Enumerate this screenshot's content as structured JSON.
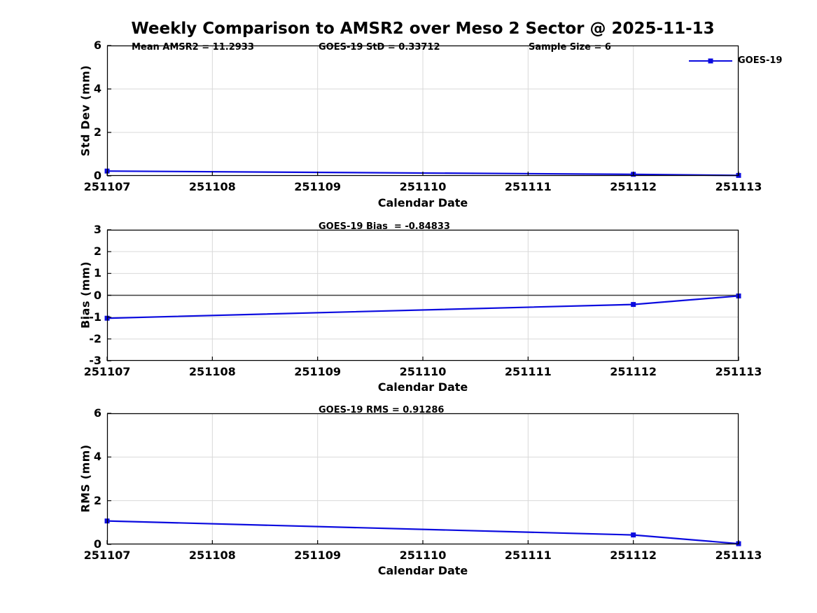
{
  "title": "Weekly Comparison to AMSR2 over Meso 2 Sector @ 2025-11-13",
  "colors": {
    "line": "#0b0bdf",
    "grid": "#d9d9d9",
    "axis": "#000000",
    "zero_line": "#3f3f3f",
    "text": "#000000"
  },
  "chart_data": [
    {
      "type": "line",
      "ylabel": "Std Dev (mm)",
      "xlabel": "Calendar Date",
      "x_ticks": [
        "251107",
        "251108",
        "251109",
        "251110",
        "251111",
        "251112",
        "251113"
      ],
      "y_ticks": [
        0,
        2,
        4,
        6
      ],
      "ylim": [
        0,
        6
      ],
      "grid": true,
      "zero_line": false,
      "legend": {
        "position": "northeast",
        "entries": [
          "GOES-19"
        ]
      },
      "annotations": [
        "Mean AMSR2 = 11.2933",
        "GOES-19 StD = 0.33712",
        "Sample Size = 6"
      ],
      "series": [
        {
          "name": "GOES-19",
          "marker": "square",
          "points": [
            {
              "x": "251107",
              "y": 0.22
            },
            {
              "x": "251112",
              "y": 0.07
            },
            {
              "x": "251113",
              "y": 0.02
            }
          ]
        }
      ]
    },
    {
      "type": "line",
      "ylabel": "Bias (mm)",
      "xlabel": "Calendar Date",
      "x_ticks": [
        "251107",
        "251108",
        "251109",
        "251110",
        "251111",
        "251112",
        "251113"
      ],
      "y_ticks": [
        -3,
        -2,
        -1,
        0,
        1,
        2,
        3
      ],
      "ylim": [
        -3,
        3
      ],
      "grid": true,
      "zero_line": true,
      "annotations": [
        "GOES-19 Bias  = -0.84833"
      ],
      "series": [
        {
          "name": "GOES-19",
          "marker": "square",
          "points": [
            {
              "x": "251107",
              "y": -1.05
            },
            {
              "x": "251112",
              "y": -0.42
            },
            {
              "x": "251113",
              "y": -0.03
            }
          ]
        }
      ]
    },
    {
      "type": "line",
      "ylabel": "RMS (mm)",
      "xlabel": "Calendar Date",
      "x_ticks": [
        "251107",
        "251108",
        "251109",
        "251110",
        "251111",
        "251112",
        "251113"
      ],
      "y_ticks": [
        0,
        2,
        4,
        6
      ],
      "ylim": [
        0,
        6
      ],
      "grid": true,
      "zero_line": false,
      "annotations": [
        "GOES-19 RMS = 0.91286"
      ],
      "series": [
        {
          "name": "GOES-19",
          "marker": "square",
          "points": [
            {
              "x": "251107",
              "y": 1.07
            },
            {
              "x": "251112",
              "y": 0.43
            },
            {
              "x": "251113",
              "y": 0.03
            }
          ]
        }
      ]
    }
  ]
}
